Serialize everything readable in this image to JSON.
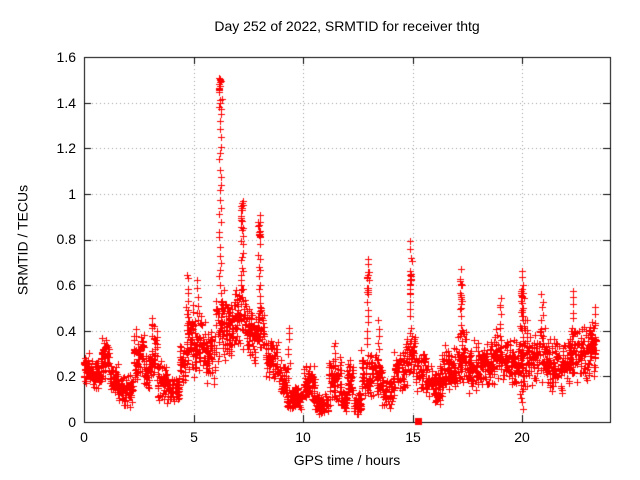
{
  "page": {
    "background": "#ffffff",
    "border_color": "#000000",
    "grid_color": "#999999"
  },
  "chart_data": {
    "type": "scatter",
    "title": "Day 252 of 2022, SRMTID for receiver thtg",
    "xlabel": "GPS time / hours",
    "ylabel": "SRMTID / TECUs",
    "xlim": [
      0,
      24
    ],
    "ylim": [
      0,
      1.6
    ],
    "xticks": [
      0,
      5,
      10,
      15,
      20
    ],
    "xtick_labels": [
      "0",
      "5",
      "10",
      "15",
      "20"
    ],
    "yticks": [
      0,
      0.2,
      0.4,
      0.6,
      0.8,
      1.0,
      1.2,
      1.4,
      1.6
    ],
    "ytick_labels": [
      "0",
      "0.2",
      "0.4",
      "0.6",
      "0.8",
      "1",
      "1.2",
      "1.4",
      "1.6"
    ],
    "grid": true,
    "legend_position": "none",
    "series": [
      {
        "name": "SRMTID",
        "marker": "plus",
        "color": "#ff0000"
      }
    ],
    "notable_points": [
      [
        6.2,
        1.51
      ],
      [
        6.2,
        1.45
      ],
      [
        7.2,
        0.97
      ],
      [
        8.0,
        0.95
      ],
      [
        14.9,
        0.8
      ],
      [
        12.95,
        0.72
      ],
      [
        20.0,
        0.67
      ],
      [
        17.2,
        0.66
      ],
      [
        4.75,
        0.65
      ],
      [
        22.3,
        0.58
      ],
      [
        20.9,
        0.56
      ],
      [
        19.0,
        0.55
      ],
      [
        23.3,
        0.5
      ],
      [
        3.1,
        0.44
      ],
      [
        15.24,
        0.0
      ]
    ],
    "band_segments": [
      [
        0.0,
        0.35,
        0.15,
        0.31,
        45
      ],
      [
        0.35,
        0.75,
        0.14,
        0.28,
        45
      ],
      [
        0.75,
        1.15,
        0.17,
        0.38,
        55
      ],
      [
        1.15,
        1.55,
        0.1,
        0.26,
        45
      ],
      [
        1.55,
        2.25,
        0.06,
        0.22,
        80
      ],
      [
        2.25,
        2.75,
        0.14,
        0.42,
        60
      ],
      [
        2.75,
        3.05,
        0.12,
        0.3,
        35
      ],
      [
        3.05,
        3.35,
        0.14,
        0.45,
        40
      ],
      [
        3.35,
        3.75,
        0.09,
        0.28,
        45
      ],
      [
        3.75,
        4.35,
        0.07,
        0.23,
        65
      ],
      [
        4.35,
        4.65,
        0.15,
        0.38,
        35
      ],
      [
        4.65,
        5.0,
        0.2,
        0.55,
        45
      ],
      [
        5.0,
        5.55,
        0.18,
        0.48,
        60
      ],
      [
        5.55,
        6.0,
        0.15,
        0.42,
        50
      ],
      [
        6.0,
        6.45,
        0.25,
        0.6,
        50
      ],
      [
        6.45,
        6.95,
        0.25,
        0.58,
        60
      ],
      [
        6.95,
        7.45,
        0.3,
        0.62,
        55
      ],
      [
        7.45,
        7.85,
        0.25,
        0.5,
        45
      ],
      [
        7.85,
        8.25,
        0.25,
        0.52,
        45
      ],
      [
        8.25,
        8.85,
        0.18,
        0.38,
        70
      ],
      [
        8.85,
        9.25,
        0.1,
        0.28,
        45
      ],
      [
        9.25,
        10.0,
        0.05,
        0.16,
        95
      ],
      [
        10.0,
        10.55,
        0.05,
        0.26,
        65
      ],
      [
        10.55,
        11.15,
        0.03,
        0.13,
        75
      ],
      [
        11.15,
        11.75,
        0.05,
        0.3,
        70
      ],
      [
        11.75,
        12.0,
        0.04,
        0.15,
        30
      ],
      [
        12.0,
        12.3,
        0.08,
        0.28,
        35
      ],
      [
        12.3,
        12.65,
        0.03,
        0.13,
        45
      ],
      [
        12.65,
        13.25,
        0.1,
        0.32,
        65
      ],
      [
        13.25,
        13.6,
        0.1,
        0.3,
        40
      ],
      [
        13.6,
        14.15,
        0.05,
        0.2,
        60
      ],
      [
        14.15,
        14.65,
        0.12,
        0.32,
        55
      ],
      [
        14.65,
        15.15,
        0.15,
        0.42,
        55
      ],
      [
        15.15,
        15.65,
        0.12,
        0.33,
        55
      ],
      [
        15.65,
        16.35,
        0.07,
        0.28,
        80
      ],
      [
        16.35,
        17.05,
        0.12,
        0.35,
        80
      ],
      [
        17.05,
        17.45,
        0.15,
        0.42,
        45
      ],
      [
        17.45,
        18.65,
        0.12,
        0.36,
        135
      ],
      [
        18.65,
        19.25,
        0.15,
        0.42,
        65
      ],
      [
        19.25,
        19.85,
        0.15,
        0.4,
        65
      ],
      [
        19.85,
        20.25,
        0.1,
        0.5,
        50
      ],
      [
        20.25,
        20.75,
        0.15,
        0.4,
        55
      ],
      [
        20.75,
        21.15,
        0.15,
        0.45,
        45
      ],
      [
        21.15,
        22.15,
        0.12,
        0.38,
        115
      ],
      [
        22.15,
        22.55,
        0.15,
        0.45,
        45
      ],
      [
        22.55,
        23.1,
        0.15,
        0.45,
        60
      ],
      [
        23.1,
        23.35,
        0.18,
        0.45,
        35
      ]
    ],
    "spikes": [
      {
        "x": 3.1,
        "y0": 0.42,
        "y1": 0.455,
        "n": 5,
        "jit": 0.03
      },
      {
        "x": 4.75,
        "y0": 0.38,
        "y1": 0.65,
        "n": 10,
        "jit": 0.05
      },
      {
        "x": 5.2,
        "y0": 0.45,
        "y1": 0.62,
        "n": 6,
        "jit": 0.05
      },
      {
        "x": 6.22,
        "y0": 0.5,
        "y1": 1.35,
        "n": 26,
        "jit": 0.05,
        "cluster": [
          1.36,
          1.51,
          18
        ],
        "cjit": 0.08
      },
      {
        "x": 7.2,
        "y0": 0.55,
        "y1": 0.84,
        "n": 14,
        "jit": 0.06,
        "cluster": [
          0.85,
          0.975,
          14
        ]
      },
      {
        "x": 8.0,
        "y0": 0.45,
        "y1": 0.74,
        "n": 12,
        "jit": 0.05,
        "cluster": [
          0.75,
          0.94,
          14
        ]
      },
      {
        "x": 9.35,
        "y0": 0.2,
        "y1": 0.42,
        "n": 8,
        "jit": 0.04
      },
      {
        "x": 11.45,
        "y0": 0.25,
        "y1": 0.35,
        "n": 5,
        "jit": 0.04
      },
      {
        "x": 12.95,
        "y0": 0.3,
        "y1": 0.72,
        "n": 14,
        "jit": 0.05,
        "cluster": [
          0.55,
          0.7,
          10
        ]
      },
      {
        "x": 13.45,
        "y0": 0.28,
        "y1": 0.45,
        "n": 6,
        "jit": 0.04
      },
      {
        "x": 14.9,
        "y0": 0.35,
        "y1": 0.8,
        "n": 14,
        "jit": 0.05,
        "cluster": [
          0.55,
          0.66,
          10
        ]
      },
      {
        "x": 17.2,
        "y0": 0.35,
        "y1": 0.66,
        "n": 12,
        "jit": 0.05,
        "cluster": [
          0.48,
          0.62,
          8
        ]
      },
      {
        "x": 19.0,
        "y0": 0.35,
        "y1": 0.55,
        "n": 8,
        "jit": 0.04
      },
      {
        "x": 20.0,
        "y0": 0.05,
        "y1": 0.67,
        "n": 20,
        "jit": 0.06,
        "cluster": [
          0.45,
          0.62,
          12
        ]
      },
      {
        "x": 20.9,
        "y0": 0.35,
        "y1": 0.56,
        "n": 8,
        "jit": 0.04
      },
      {
        "x": 22.3,
        "y0": 0.35,
        "y1": 0.58,
        "n": 8,
        "jit": 0.04
      },
      {
        "x": 23.3,
        "y0": 0.28,
        "y1": 0.5,
        "n": 8,
        "jit": 0.04
      }
    ],
    "special_points": [
      {
        "x": 15.24,
        "y": 0.005,
        "marker": "filled-square",
        "color": "#ff0000"
      }
    ]
  }
}
